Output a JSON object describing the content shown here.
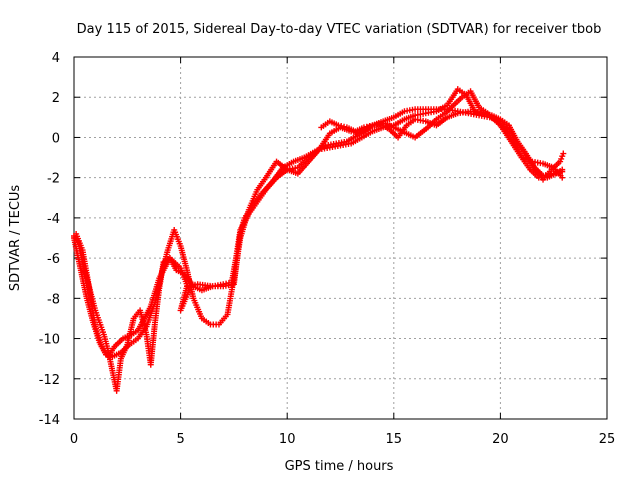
{
  "chart_data": {
    "type": "scatter",
    "title": "Day 115 of 2015, Sidereal Day-to-day VTEC variation (SDTVAR) for receiver tbob",
    "xlabel": "GPS time / hours",
    "ylabel": "SDTVAR / TECUs",
    "xlim": [
      0,
      25
    ],
    "ylim": [
      -14,
      4
    ],
    "x_ticks": [
      "0",
      "5",
      "10",
      "15",
      "20",
      "25"
    ],
    "y_ticks": [
      "-14",
      "-12",
      "-10",
      "-8",
      "-6",
      "-4",
      "-2",
      "0",
      "2",
      "4"
    ],
    "grid": true,
    "marker": "+",
    "series_color": "#ff0000",
    "series": [
      {
        "values": [
          [
            0.0,
            -4.9
          ],
          [
            0.2,
            -5.2
          ],
          [
            0.4,
            -6.2
          ],
          [
            0.6,
            -7.0
          ],
          [
            0.8,
            -7.8
          ],
          [
            1.0,
            -8.6
          ],
          [
            1.2,
            -9.2
          ],
          [
            1.4,
            -9.8
          ],
          [
            1.6,
            -10.6
          ],
          [
            1.8,
            -11.6
          ],
          [
            2.0,
            -12.6
          ],
          [
            2.2,
            -11.0
          ],
          [
            2.5,
            -10.3
          ],
          [
            2.8,
            -9.0
          ],
          [
            3.1,
            -8.6
          ],
          [
            3.4,
            -9.8
          ],
          [
            3.6,
            -11.3
          ],
          [
            3.8,
            -9.2
          ],
          [
            4.0,
            -7.5
          ],
          [
            4.2,
            -6.2
          ],
          [
            4.5,
            -6.0
          ],
          [
            4.8,
            -6.6
          ],
          [
            5.2,
            -6.8
          ],
          [
            5.6,
            -7.4
          ],
          [
            6.0,
            -7.6
          ],
          [
            6.5,
            -7.4
          ],
          [
            7.0,
            -7.3
          ],
          [
            7.4,
            -7.2
          ],
          [
            7.6,
            -6.0
          ],
          [
            7.8,
            -4.6
          ],
          [
            8.2,
            -3.8
          ],
          [
            8.6,
            -3.2
          ],
          [
            9.0,
            -2.6
          ],
          [
            9.5,
            -2.0
          ],
          [
            10.0,
            -1.6
          ],
          [
            10.5,
            -1.5
          ],
          [
            11.0,
            -1.0
          ],
          [
            11.5,
            -0.6
          ],
          [
            12.0,
            -0.5
          ],
          [
            12.5,
            -0.4
          ],
          [
            13.0,
            -0.3
          ],
          [
            13.5,
            0.0
          ],
          [
            14.0,
            0.3
          ],
          [
            14.5,
            0.5
          ],
          [
            15.0,
            0.6
          ],
          [
            15.5,
            0.9
          ],
          [
            16.0,
            1.1
          ],
          [
            16.5,
            1.2
          ],
          [
            17.0,
            1.3
          ],
          [
            17.5,
            1.6
          ],
          [
            18.0,
            2.4
          ],
          [
            18.4,
            2.1
          ],
          [
            18.8,
            1.3
          ],
          [
            19.2,
            1.2
          ],
          [
            19.6,
            1.1
          ],
          [
            20.0,
            0.9
          ],
          [
            20.4,
            0.6
          ],
          [
            20.8,
            -0.2
          ],
          [
            21.2,
            -0.8
          ],
          [
            21.6,
            -1.5
          ],
          [
            22.0,
            -2.1
          ],
          [
            22.4,
            -1.6
          ],
          [
            22.8,
            -1.2
          ],
          [
            22.95,
            -0.8
          ]
        ]
      },
      {
        "values": [
          [
            0.0,
            -5.0
          ],
          [
            0.3,
            -6.5
          ],
          [
            0.6,
            -8.0
          ],
          [
            0.9,
            -9.2
          ],
          [
            1.2,
            -10.2
          ],
          [
            1.5,
            -10.8
          ],
          [
            1.8,
            -10.9
          ],
          [
            2.2,
            -10.7
          ],
          [
            2.6,
            -10.3
          ],
          [
            3.0,
            -10.0
          ],
          [
            3.4,
            -9.4
          ],
          [
            3.8,
            -8.2
          ],
          [
            4.1,
            -6.8
          ],
          [
            4.4,
            -5.6
          ],
          [
            4.7,
            -4.6
          ],
          [
            5.0,
            -5.4
          ],
          [
            5.3,
            -6.6
          ],
          [
            5.6,
            -8.0
          ],
          [
            6.0,
            -9.0
          ],
          [
            6.4,
            -9.3
          ],
          [
            6.8,
            -9.3
          ],
          [
            7.2,
            -8.8
          ],
          [
            7.5,
            -7.0
          ],
          [
            7.8,
            -5.0
          ],
          [
            8.2,
            -3.6
          ],
          [
            8.6,
            -2.6
          ],
          [
            9.0,
            -2.0
          ],
          [
            9.5,
            -1.2
          ],
          [
            10.0,
            -1.6
          ],
          [
            10.5,
            -1.8
          ],
          [
            11.0,
            -1.2
          ],
          [
            11.5,
            -0.6
          ],
          [
            12.0,
            0.2
          ],
          [
            12.5,
            0.5
          ],
          [
            13.0,
            0.3
          ],
          [
            13.5,
            0.2
          ],
          [
            14.0,
            0.6
          ],
          [
            14.5,
            0.8
          ],
          [
            15.0,
            1.0
          ],
          [
            15.5,
            1.3
          ],
          [
            16.0,
            1.4
          ],
          [
            16.5,
            1.4
          ],
          [
            17.0,
            1.4
          ],
          [
            17.5,
            1.4
          ],
          [
            18.0,
            1.3
          ],
          [
            18.5,
            1.2
          ],
          [
            19.0,
            1.1
          ],
          [
            19.5,
            1.0
          ],
          [
            20.0,
            0.8
          ],
          [
            20.5,
            0.2
          ],
          [
            21.0,
            -0.6
          ],
          [
            21.5,
            -1.4
          ],
          [
            22.0,
            -1.9
          ],
          [
            22.5,
            -1.8
          ],
          [
            22.9,
            -1.7
          ]
        ]
      },
      {
        "values": [
          [
            0.1,
            -4.8
          ],
          [
            0.4,
            -5.6
          ],
          [
            0.7,
            -7.4
          ],
          [
            1.0,
            -9.4
          ],
          [
            1.3,
            -10.4
          ],
          [
            1.6,
            -10.9
          ],
          [
            1.9,
            -10.4
          ],
          [
            2.3,
            -10.0
          ],
          [
            2.7,
            -9.8
          ],
          [
            3.0,
            -9.6
          ],
          [
            3.3,
            -9.0
          ],
          [
            3.6,
            -8.4
          ],
          [
            4.0,
            -7.0
          ],
          [
            4.5,
            -6.0
          ],
          [
            5.0,
            -6.5
          ],
          [
            5.4,
            -7.6
          ],
          [
            5.0,
            -8.6
          ],
          [
            5.3,
            -7.4
          ],
          [
            5.8,
            -7.3
          ],
          [
            6.5,
            -7.4
          ],
          [
            7.0,
            -7.4
          ],
          [
            7.5,
            -7.3
          ],
          [
            7.8,
            -4.8
          ],
          [
            8.0,
            -4.0
          ],
          [
            8.4,
            -3.4
          ],
          [
            8.8,
            -2.8
          ],
          [
            9.3,
            -2.2
          ],
          [
            9.8,
            -1.5
          ],
          [
            10.3,
            -1.2
          ],
          [
            10.8,
            -1.0
          ],
          [
            11.3,
            -0.7
          ],
          [
            11.8,
            -0.4
          ],
          [
            12.3,
            -0.3
          ],
          [
            12.8,
            -0.2
          ],
          [
            13.3,
            0.1
          ],
          [
            13.8,
            0.5
          ],
          [
            14.3,
            0.7
          ],
          [
            14.8,
            0.4
          ],
          [
            15.2,
            0.0
          ],
          [
            15.6,
            0.6
          ],
          [
            16.0,
            0.9
          ],
          [
            16.5,
            0.8
          ],
          [
            17.0,
            0.6
          ],
          [
            17.5,
            1.0
          ],
          [
            18.0,
            1.2
          ],
          [
            18.6,
            1.3
          ],
          [
            19.0,
            1.2
          ],
          [
            19.5,
            1.1
          ],
          [
            20.0,
            0.6
          ],
          [
            20.5,
            -0.2
          ],
          [
            21.0,
            -1.0
          ],
          [
            21.5,
            -1.2
          ],
          [
            22.0,
            -1.3
          ],
          [
            22.5,
            -1.5
          ],
          [
            22.9,
            -2.0
          ]
        ]
      },
      {
        "values": [
          [
            11.6,
            0.5
          ],
          [
            12.0,
            0.8
          ],
          [
            12.4,
            0.6
          ],
          [
            12.8,
            0.5
          ],
          [
            13.2,
            0.3
          ],
          [
            13.6,
            0.5
          ],
          [
            14.0,
            0.6
          ],
          [
            14.6,
            0.7
          ],
          [
            15.0,
            0.5
          ],
          [
            16.0,
            0.0
          ],
          [
            16.6,
            0.5
          ],
          [
            17.0,
            0.9
          ],
          [
            17.4,
            1.2
          ],
          [
            17.8,
            1.6
          ],
          [
            18.2,
            2.0
          ],
          [
            18.6,
            2.3
          ],
          [
            19.0,
            1.5
          ],
          [
            19.4,
            1.2
          ],
          [
            19.8,
            0.9
          ],
          [
            20.2,
            0.4
          ],
          [
            20.6,
            -0.2
          ],
          [
            21.0,
            -1.0
          ],
          [
            21.4,
            -1.6
          ],
          [
            21.8,
            -2.0
          ],
          [
            22.2,
            -2.0
          ],
          [
            22.6,
            -1.8
          ],
          [
            22.9,
            -1.6
          ]
        ]
      }
    ]
  }
}
